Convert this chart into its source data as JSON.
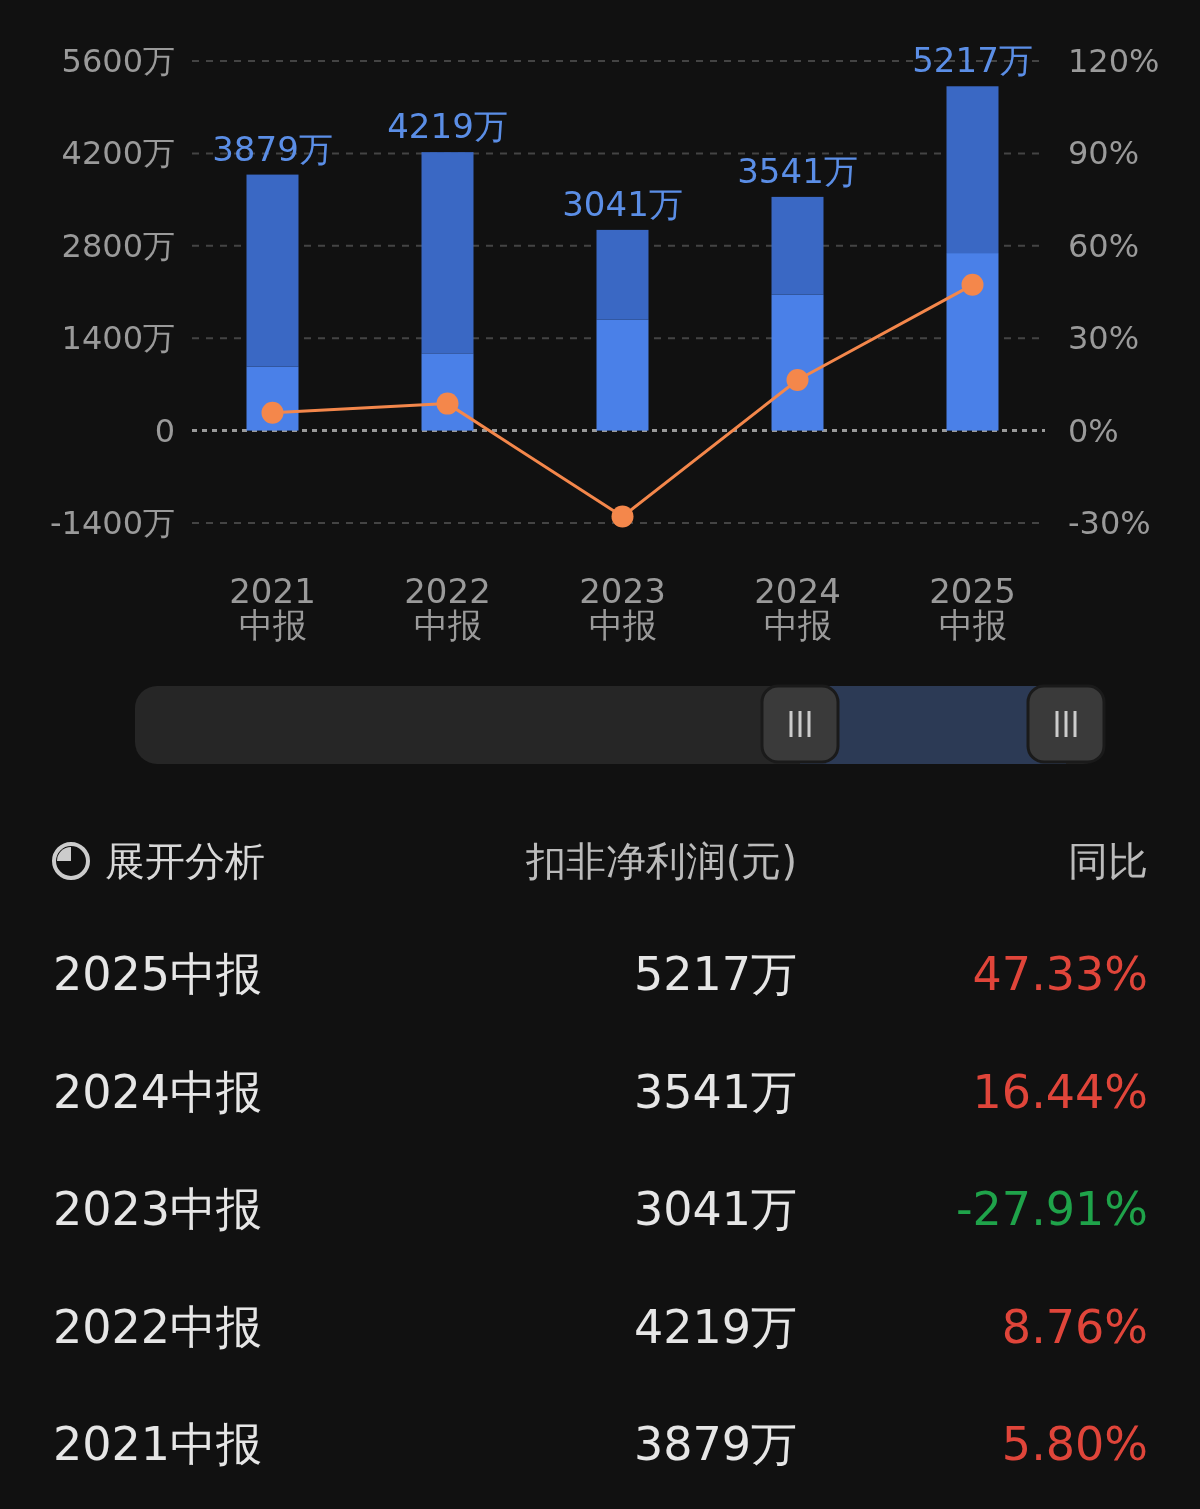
{
  "chart_data": {
    "type": "bar",
    "stacked": true,
    "categories": [
      "2021\n中报",
      "2022\n中报",
      "2023\n中报",
      "2024\n中报",
      "2025\n中报"
    ],
    "series": [
      {
        "color": "#4a80e8",
        "values": [
          970,
          1170,
          1680,
          2060,
          2690
        ]
      },
      {
        "color": "#3a68c4",
        "values": [
          2909,
          3049,
          1361,
          1481,
          2527
        ]
      },
      {
        "type": "line",
        "axis": "y2",
        "color": "#f4874b",
        "marker": "circle",
        "values": [
          5.8,
          8.76,
          -27.91,
          16.44,
          47.33
        ]
      }
    ],
    "totals": [
      "3879万",
      "4219万",
      "3041万",
      "3541万",
      "5217万"
    ],
    "ylim": [
      -1400,
      5600
    ],
    "yticks": [
      {
        "value": -1400,
        "label": "-1400万"
      },
      0,
      {
        "value": 1400,
        "label": "1400万"
      },
      {
        "value": 2800,
        "label": "2800万"
      },
      {
        "value": 4200,
        "label": "4200万"
      },
      {
        "value": 5600,
        "label": "5600万"
      }
    ],
    "y2lim": [
      -30,
      120
    ],
    "y2ticks": [
      {
        "value": -30,
        "label": "-30%"
      },
      {
        "value": 0,
        "label": "0%"
      },
      {
        "value": 30,
        "label": "30%"
      },
      {
        "value": 60,
        "label": "60%"
      },
      {
        "value": 90,
        "label": "90%"
      },
      {
        "value": 120,
        "label": "120%"
      }
    ],
    "grid": "y",
    "ref_lines": [
      {
        "axis": "y",
        "value": 0,
        "color": "#9a9a9a",
        "line_style": "dotted"
      }
    ],
    "annotations": [
      "展开分析",
      "扣非净利润(元)",
      "同比",
      "2025中报",
      "5217万",
      "47.33%",
      "2024中报",
      "3541万",
      "16.44%",
      "2023中报",
      "3041万",
      "-27.91%",
      "2022中报",
      "4219万",
      "8.76%",
      "2021中报",
      "3879万",
      "5.80%"
    ]
  }
}
